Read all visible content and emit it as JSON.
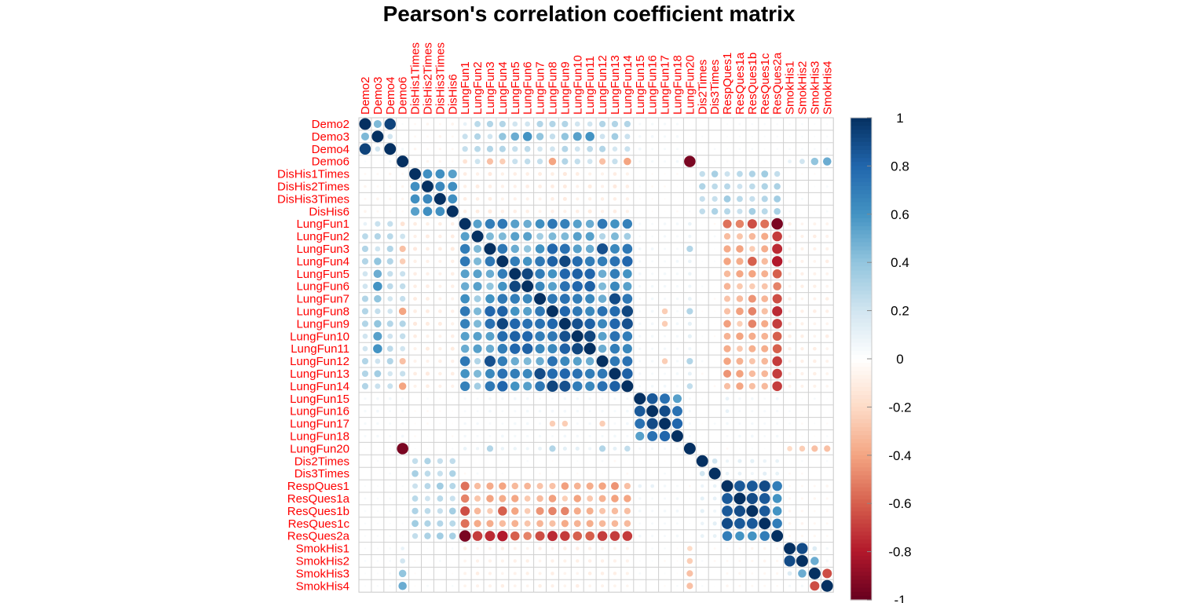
{
  "chart_data": {
    "type": "heatmap",
    "title": "Pearson's correlation coefficient matrix",
    "variables": [
      "Demo2",
      "Demo3",
      "Demo4",
      "Demo6",
      "DisHis1Times",
      "DisHis2Times",
      "DisHis3Times",
      "DisHis6",
      "LungFun1",
      "LungFun2",
      "LungFun3",
      "LungFun4",
      "LungFun5",
      "LungFun6",
      "LungFun7",
      "LungFun8",
      "LungFun9",
      "LungFun10",
      "LungFun11",
      "LungFun12",
      "LungFun13",
      "LungFun14",
      "LungFun15",
      "LungFun16",
      "LungFun17",
      "LungFun18",
      "LungFun20",
      "Dis2Times",
      "Dis3Times",
      "RespQues1",
      "ResQues1a",
      "ResQues1b",
      "ResQues1c",
      "ResQues2a",
      "SmokHis1",
      "SmokHis2",
      "SmokHis3",
      "SmokHis4"
    ],
    "colorbar": {
      "range": [
        -1,
        1
      ],
      "ticks": [
        "1",
        "0.8",
        "0.6",
        "0.4",
        "0.2",
        "0",
        "-0.2",
        "-0.4",
        "-0.6",
        "-0.8",
        "-1"
      ]
    },
    "groups": {
      "demo": [
        0,
        1,
        2,
        3
      ],
      "dishis": [
        4,
        5,
        6,
        7
      ],
      "lungA": [
        8,
        9,
        10,
        11,
        12,
        13,
        14,
        15,
        16,
        17,
        18,
        19,
        20,
        21
      ],
      "lungB": [
        22,
        23,
        24,
        25
      ],
      "lf20": [
        26
      ],
      "dis": [
        27,
        28
      ],
      "resp": [
        29,
        30,
        31,
        32,
        33
      ],
      "smok": [
        34,
        35,
        36,
        37
      ]
    },
    "block_values": {
      "demo-lungA": 0.25,
      "demo-dishis": -0.05,
      "demo-lungB": 0.05,
      "demo-resp": 0.03,
      "dishis-lungA": -0.1,
      "dishis-dis": 0.3,
      "dishis-resp": 0.3,
      "lungA-lungB": 0.05,
      "lungA-lf20": 0.1,
      "lungA-resp": -0.35,
      "lungA-smok": -0.08,
      "lungB-resp": 0.05,
      "lungB-lf20": 0.05,
      "lf20-smok": -0.2,
      "dis-resp": 0.1,
      "resp-smok": -0.05,
      "demo-smok": 0.03
    },
    "cell_values": [
      [
        0,
        1,
        0.45
      ],
      [
        0,
        2,
        0.93
      ],
      [
        1,
        2,
        0.2
      ],
      [
        2,
        3,
        0.05
      ],
      [
        4,
        5,
        0.62
      ],
      [
        4,
        6,
        0.62
      ],
      [
        4,
        7,
        0.55
      ],
      [
        5,
        6,
        0.65
      ],
      [
        5,
        7,
        0.62
      ],
      [
        6,
        7,
        0.62
      ],
      [
        8,
        9,
        0.55
      ],
      [
        8,
        10,
        0.7
      ],
      [
        8,
        11,
        0.72
      ],
      [
        8,
        12,
        0.55
      ],
      [
        8,
        13,
        0.5
      ],
      [
        8,
        14,
        0.62
      ],
      [
        8,
        15,
        0.72
      ],
      [
        8,
        16,
        0.68
      ],
      [
        8,
        17,
        0.55
      ],
      [
        8,
        18,
        0.5
      ],
      [
        8,
        19,
        0.72
      ],
      [
        8,
        20,
        0.6
      ],
      [
        8,
        21,
        0.68
      ],
      [
        9,
        10,
        0.45
      ],
      [
        9,
        11,
        0.45
      ],
      [
        9,
        12,
        0.55
      ],
      [
        9,
        13,
        0.55
      ],
      [
        9,
        14,
        0.35
      ],
      [
        9,
        15,
        0.45
      ],
      [
        9,
        16,
        0.45
      ],
      [
        9,
        17,
        0.55
      ],
      [
        9,
        18,
        0.55
      ],
      [
        9,
        19,
        0.3
      ],
      [
        9,
        20,
        0.45
      ],
      [
        9,
        21,
        0.35
      ],
      [
        10,
        11,
        0.72
      ],
      [
        10,
        12,
        0.5
      ],
      [
        10,
        13,
        0.4
      ],
      [
        10,
        14,
        0.6
      ],
      [
        10,
        15,
        0.8
      ],
      [
        10,
        16,
        0.75
      ],
      [
        10,
        17,
        0.55
      ],
      [
        10,
        18,
        0.5
      ],
      [
        10,
        19,
        0.88
      ],
      [
        10,
        20,
        0.65
      ],
      [
        10,
        21,
        0.72
      ],
      [
        11,
        12,
        0.7
      ],
      [
        11,
        13,
        0.6
      ],
      [
        11,
        14,
        0.72
      ],
      [
        11,
        15,
        0.82
      ],
      [
        11,
        16,
        0.92
      ],
      [
        11,
        17,
        0.78
      ],
      [
        11,
        18,
        0.7
      ],
      [
        11,
        19,
        0.7
      ],
      [
        11,
        20,
        0.75
      ],
      [
        11,
        21,
        0.8
      ],
      [
        12,
        13,
        0.92
      ],
      [
        12,
        14,
        0.7
      ],
      [
        12,
        15,
        0.6
      ],
      [
        12,
        16,
        0.8
      ],
      [
        12,
        17,
        0.82
      ],
      [
        12,
        18,
        0.8
      ],
      [
        12,
        19,
        0.5
      ],
      [
        12,
        20,
        0.7
      ],
      [
        12,
        21,
        0.6
      ],
      [
        13,
        14,
        0.65
      ],
      [
        13,
        15,
        0.55
      ],
      [
        13,
        16,
        0.75
      ],
      [
        13,
        17,
        0.8
      ],
      [
        13,
        18,
        0.82
      ],
      [
        13,
        19,
        0.45
      ],
      [
        13,
        20,
        0.65
      ],
      [
        13,
        21,
        0.55
      ],
      [
        14,
        15,
        0.72
      ],
      [
        14,
        16,
        0.75
      ],
      [
        14,
        17,
        0.7
      ],
      [
        14,
        18,
        0.65
      ],
      [
        14,
        19,
        0.5
      ],
      [
        14,
        20,
        0.9
      ],
      [
        14,
        21,
        0.72
      ],
      [
        15,
        16,
        0.8
      ],
      [
        15,
        17,
        0.72
      ],
      [
        15,
        18,
        0.65
      ],
      [
        15,
        19,
        0.75
      ],
      [
        15,
        20,
        0.78
      ],
      [
        15,
        21,
        0.92
      ],
      [
        16,
        17,
        0.88
      ],
      [
        16,
        18,
        0.82
      ],
      [
        16,
        19,
        0.65
      ],
      [
        16,
        20,
        0.8
      ],
      [
        16,
        21,
        0.88
      ],
      [
        17,
        18,
        0.92
      ],
      [
        17,
        19,
        0.55
      ],
      [
        17,
        20,
        0.75
      ],
      [
        17,
        21,
        0.7
      ],
      [
        18,
        19,
        0.5
      ],
      [
        18,
        20,
        0.7
      ],
      [
        18,
        21,
        0.65
      ],
      [
        19,
        20,
        0.72
      ],
      [
        19,
        21,
        0.75
      ],
      [
        20,
        21,
        0.82
      ],
      [
        22,
        23,
        0.85
      ],
      [
        22,
        24,
        0.75
      ],
      [
        22,
        25,
        0.55
      ],
      [
        23,
        24,
        0.9
      ],
      [
        23,
        25,
        0.75
      ],
      [
        24,
        25,
        0.8
      ],
      [
        27,
        28,
        0.2
      ],
      [
        29,
        30,
        0.85
      ],
      [
        29,
        31,
        0.85
      ],
      [
        29,
        32,
        0.9
      ],
      [
        29,
        33,
        0.7
      ],
      [
        30,
        31,
        0.9
      ],
      [
        30,
        32,
        0.85
      ],
      [
        30,
        33,
        0.6
      ],
      [
        31,
        32,
        0.85
      ],
      [
        31,
        33,
        0.6
      ],
      [
        32,
        33,
        0.7
      ],
      [
        34,
        35,
        0.9
      ],
      [
        34,
        36,
        0.15
      ],
      [
        34,
        37,
        0.05
      ],
      [
        35,
        36,
        0.5
      ],
      [
        35,
        37,
        0.05
      ],
      [
        36,
        37,
        -0.65
      ],
      [
        3,
        26,
        -0.95
      ],
      [
        3,
        34,
        0.1
      ],
      [
        3,
        35,
        0.2
      ],
      [
        3,
        36,
        0.4
      ],
      [
        3,
        37,
        0.5
      ],
      [
        1,
        12,
        0.5
      ],
      [
        1,
        13,
        0.6
      ],
      [
        1,
        17,
        0.55
      ],
      [
        1,
        18,
        0.6
      ],
      [
        1,
        11,
        0.4
      ],
      [
        1,
        14,
        0.4
      ],
      [
        1,
        16,
        0.4
      ],
      [
        1,
        20,
        0.35
      ],
      [
        0,
        8,
        0.1
      ],
      [
        0,
        10,
        0.3
      ],
      [
        0,
        11,
        0.3
      ],
      [
        0,
        14,
        0.3
      ],
      [
        0,
        15,
        0.3
      ],
      [
        0,
        16,
        0.3
      ],
      [
        0,
        19,
        0.3
      ],
      [
        0,
        20,
        0.3
      ],
      [
        0,
        21,
        0.3
      ],
      [
        0,
        12,
        0.2
      ],
      [
        0,
        13,
        0.2
      ],
      [
        0,
        17,
        0.2
      ],
      [
        0,
        18,
        0.2
      ],
      [
        2,
        10,
        0.3
      ],
      [
        2,
        19,
        0.3
      ],
      [
        2,
        15,
        0.2
      ],
      [
        3,
        15,
        -0.4
      ],
      [
        3,
        21,
        -0.4
      ],
      [
        3,
        10,
        -0.3
      ],
      [
        3,
        19,
        -0.3
      ],
      [
        3,
        11,
        -0.25
      ],
      [
        3,
        8,
        -0.15
      ],
      [
        8,
        33,
        -0.95
      ],
      [
        9,
        33,
        -0.7
      ],
      [
        10,
        33,
        -0.75
      ],
      [
        11,
        33,
        -0.8
      ],
      [
        12,
        33,
        -0.6
      ],
      [
        13,
        33,
        -0.5
      ],
      [
        14,
        33,
        -0.65
      ],
      [
        15,
        33,
        -0.75
      ],
      [
        16,
        33,
        -0.7
      ],
      [
        17,
        33,
        -0.6
      ],
      [
        18,
        33,
        -0.6
      ],
      [
        19,
        33,
        -0.7
      ],
      [
        20,
        33,
        -0.7
      ],
      [
        21,
        33,
        -0.7
      ],
      [
        8,
        29,
        -0.55
      ],
      [
        8,
        30,
        -0.5
      ],
      [
        8,
        31,
        -0.65
      ],
      [
        8,
        32,
        -0.55
      ],
      [
        11,
        29,
        -0.4
      ],
      [
        11,
        31,
        -0.6
      ],
      [
        15,
        31,
        -0.5
      ],
      [
        16,
        31,
        -0.5
      ],
      [
        14,
        31,
        -0.45
      ],
      [
        19,
        29,
        -0.4
      ],
      [
        20,
        29,
        -0.45
      ],
      [
        10,
        26,
        0.3
      ],
      [
        15,
        26,
        0.3
      ],
      [
        19,
        26,
        0.3
      ],
      [
        21,
        26,
        0.25
      ],
      [
        15,
        24,
        -0.25
      ],
      [
        19,
        24,
        -0.25
      ],
      [
        16,
        24,
        -0.25
      ],
      [
        26,
        34,
        -0.2
      ],
      [
        26,
        35,
        -0.25
      ],
      [
        26,
        36,
        -0.3
      ],
      [
        26,
        37,
        -0.3
      ],
      [
        22,
        29,
        0.1
      ],
      [
        23,
        29,
        0.1
      ]
    ]
  }
}
